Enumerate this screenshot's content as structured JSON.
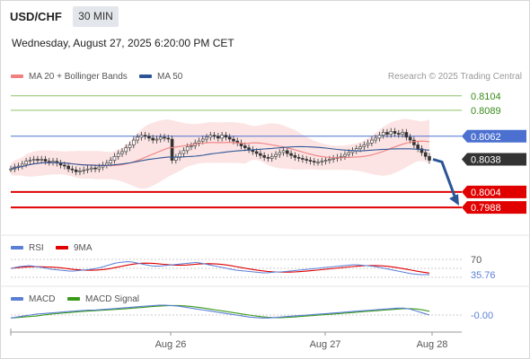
{
  "header": {
    "symbol": "USD/CHF",
    "timeframe": "30 MIN",
    "datetime": "Wednesday, August 27, 2025 6:20:00 PM CET",
    "credit": "Research © 2025 Trading Central"
  },
  "colors": {
    "ma20": "#f08080",
    "ma50": "#2c5596",
    "resistance": "#8dc26a",
    "pivot": "#4b70d0",
    "support": "#e00000",
    "candle": "#333333",
    "bands_fill": "#fbd8d8",
    "rsi": "#5b7fd6",
    "rsi_ma": "#e00000",
    "macd": "#5b7fd6",
    "macd_signal": "#3a9a1a",
    "arrow": "#2c5596"
  },
  "chart_data": [
    {
      "type": "candlestick",
      "title": "USD/CHF",
      "legend": [
        "MA 20 + Bollinger Bands",
        "MA 50"
      ],
      "x_ticks": [
        "Aug 26",
        "Aug 27",
        "Aug 28"
      ],
      "ylim": [
        0.7975,
        0.8115
      ],
      "last_price": 0.8038,
      "levels": [
        {
          "label": "0.8104",
          "value": 0.8104,
          "kind": "resistance"
        },
        {
          "label": "0.8089",
          "value": 0.8089,
          "kind": "resistance"
        },
        {
          "label": "0.8062",
          "value": 0.8062,
          "kind": "pivot"
        },
        {
          "label": "0.8038",
          "value": 0.8038,
          "kind": "last"
        },
        {
          "label": "0.8004",
          "value": 0.8004,
          "kind": "support"
        },
        {
          "label": "0.7988",
          "value": 0.7988,
          "kind": "support"
        }
      ],
      "target_arrow": {
        "from": 0.8038,
        "to": 0.7988
      },
      "close": [
        0.8028,
        0.803,
        0.8031,
        0.8033,
        0.8036,
        0.8037,
        0.8038,
        0.8037,
        0.8038,
        0.8036,
        0.8035,
        0.8036,
        0.8034,
        0.8032,
        0.8031,
        0.8028,
        0.8027,
        0.8025,
        0.8026,
        0.8027,
        0.8028,
        0.8029,
        0.8028,
        0.803,
        0.8032,
        0.8034,
        0.8037,
        0.8041,
        0.8044,
        0.8046,
        0.805,
        0.8053,
        0.8058,
        0.8061,
        0.8063,
        0.8062,
        0.806,
        0.8058,
        0.8059,
        0.8061,
        0.806,
        0.8059,
        0.8037,
        0.804,
        0.8044,
        0.8047,
        0.8051,
        0.8052,
        0.8055,
        0.8057,
        0.8059,
        0.8061,
        0.8063,
        0.8062,
        0.806,
        0.8063,
        0.8061,
        0.8059,
        0.8057,
        0.8055,
        0.8052,
        0.805,
        0.8048,
        0.8046,
        0.8044,
        0.8042,
        0.804,
        0.8039,
        0.8041,
        0.8043,
        0.8045,
        0.8047,
        0.8044,
        0.8042,
        0.804,
        0.8039,
        0.8038,
        0.8037,
        0.8036,
        0.8035,
        0.8035,
        0.8036,
        0.8037,
        0.8038,
        0.8039,
        0.804,
        0.8041,
        0.8043,
        0.8045,
        0.8047,
        0.8049,
        0.8051,
        0.8053,
        0.8055,
        0.8058,
        0.806,
        0.8063,
        0.8066,
        0.8064,
        0.8067,
        0.8065,
        0.8064,
        0.8066,
        0.8061,
        0.8058,
        0.8053,
        0.8049,
        0.8045,
        0.8041,
        0.8037
      ]
    },
    {
      "type": "line",
      "title": "RSI",
      "series": [
        {
          "name": "RSI"
        },
        {
          "name": "9MA"
        }
      ],
      "levels": [
        70
      ],
      "last_value": 35.76,
      "ylim": [
        20,
        80
      ],
      "rsi": [
        50,
        52,
        54,
        55,
        56,
        55,
        53,
        52,
        50,
        48,
        47,
        46,
        45,
        44,
        44,
        45,
        46,
        47,
        48,
        50,
        52,
        55,
        58,
        61,
        63,
        64,
        65,
        64,
        62,
        60,
        58,
        56,
        55,
        55,
        56,
        57,
        58,
        59,
        60,
        61,
        62,
        63,
        62,
        60,
        58,
        56,
        54,
        52,
        50,
        48,
        46,
        45,
        44,
        43,
        42,
        41,
        40,
        40,
        41,
        42,
        42,
        43,
        44,
        45,
        46,
        47,
        48,
        49,
        50,
        51,
        52,
        53,
        54,
        55,
        56,
        57,
        58,
        58,
        57,
        56,
        55,
        54,
        52,
        50,
        48,
        46,
        44,
        42,
        40,
        38,
        37,
        36,
        36,
        35.76
      ]
    },
    {
      "type": "line",
      "title": "MACD",
      "series": [
        {
          "name": "MACD"
        },
        {
          "name": "MACD Signal"
        }
      ],
      "last_value": -0.0,
      "macd": [
        -3,
        -2,
        -1,
        0,
        1,
        1.5,
        2,
        2.5,
        3,
        3.5,
        4,
        4.5,
        5,
        5,
        5.5,
        6,
        6.5,
        7,
        7.5,
        8,
        8.5,
        9,
        9.5,
        10,
        10,
        9.5,
        9,
        8,
        7,
        6,
        5,
        4,
        3,
        2,
        1,
        0,
        -1,
        -2,
        -2.5,
        -3,
        -3,
        -2.5,
        -2,
        -1.5,
        -1,
        -0.5,
        0,
        0.5,
        1,
        1.5,
        2,
        2.5,
        3,
        3.5,
        4,
        4.5,
        5,
        5.5,
        6,
        6.5,
        7,
        7,
        6,
        4,
        2,
        0
      ]
    }
  ],
  "pane_legends": {
    "rsi": [
      "RSI",
      "9MA"
    ],
    "macd": [
      "MACD",
      "MACD Signal"
    ]
  },
  "rsi_pane": {
    "level_label": "70",
    "value_label": "35.76"
  },
  "macd_pane": {
    "value_label": "-0.00"
  }
}
